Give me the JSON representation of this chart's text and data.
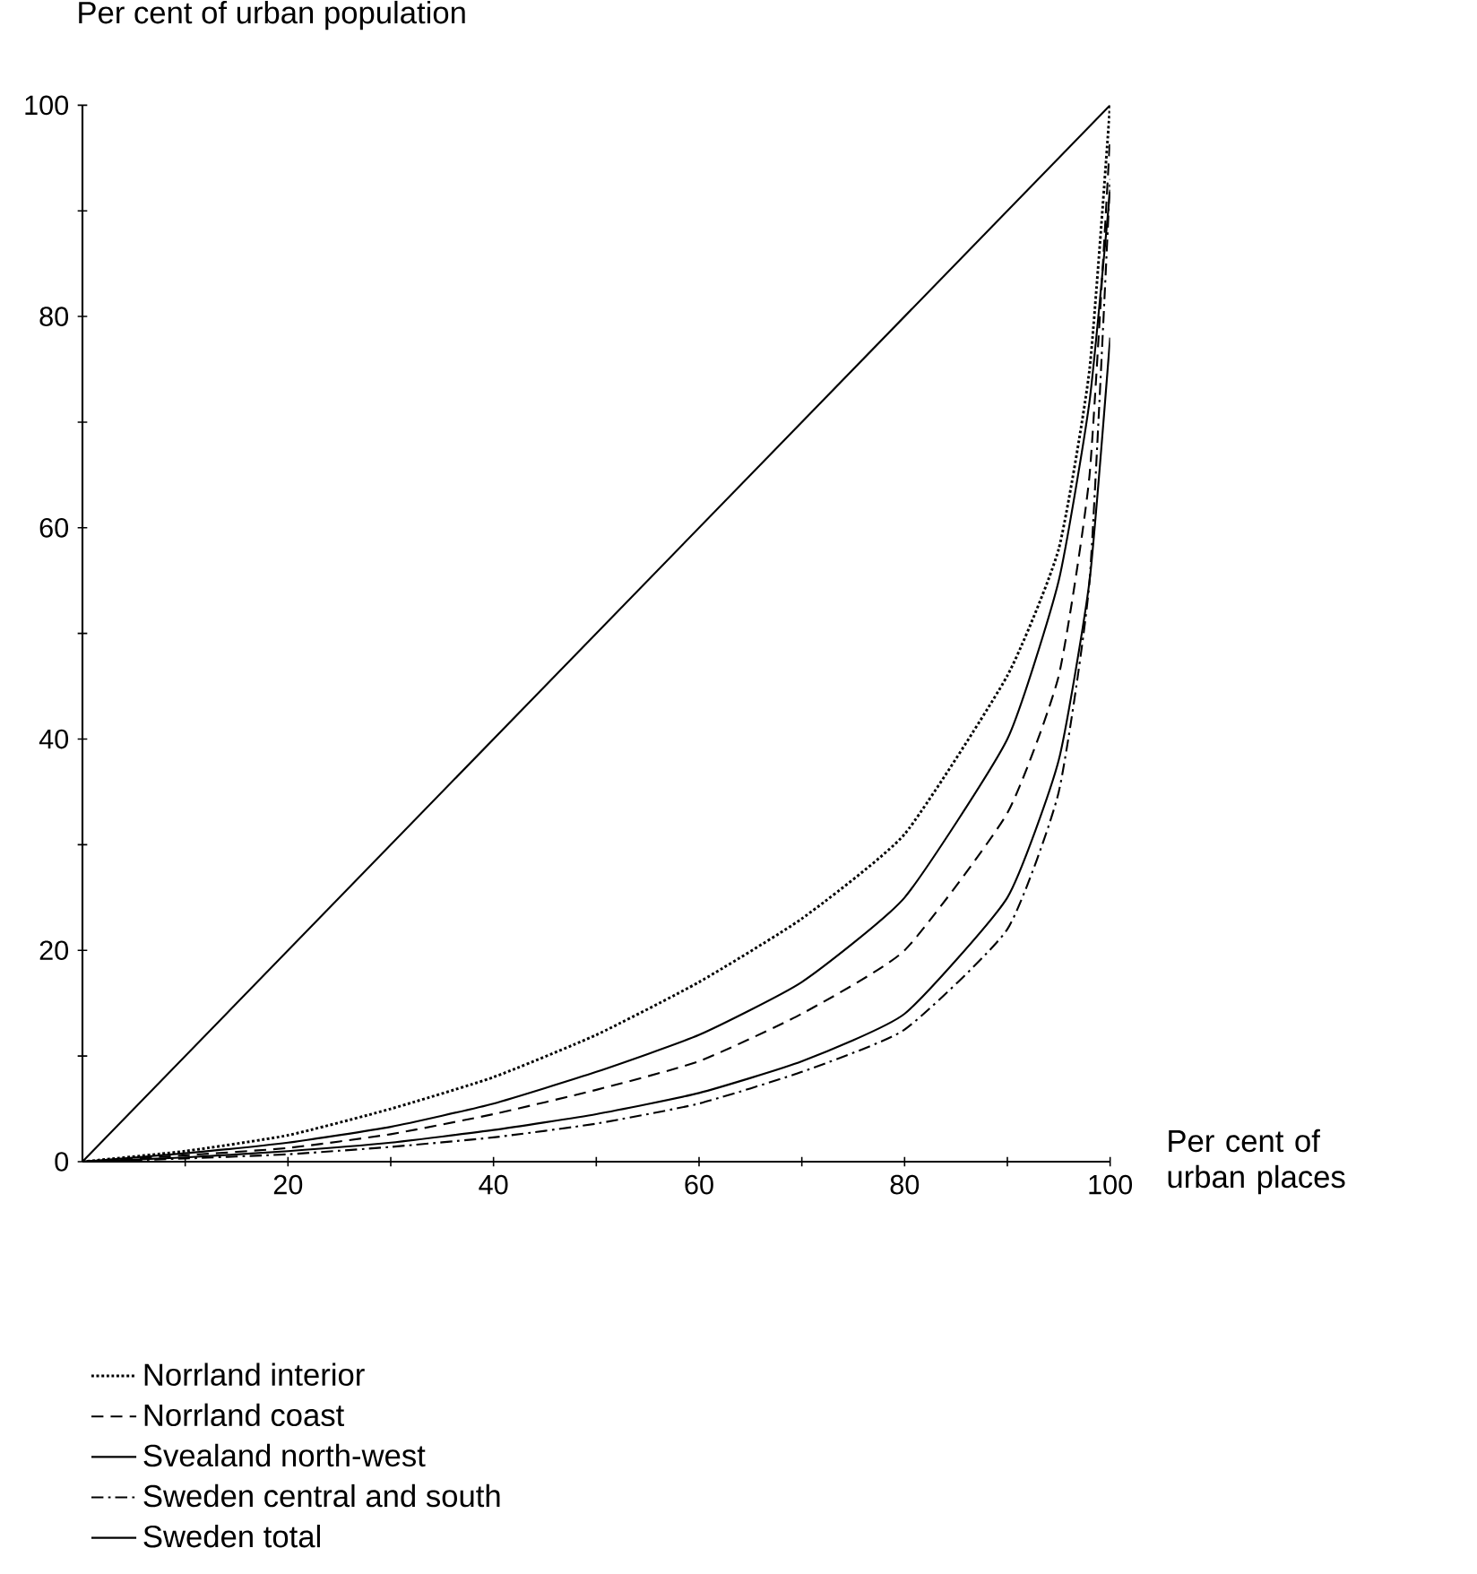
{
  "chart_data": {
    "type": "line",
    "ylabel": "Per cent of urban population",
    "xlabel": "Per cent of urban places",
    "x": [
      0,
      10,
      20,
      30,
      40,
      50,
      60,
      70,
      80,
      90,
      95,
      98,
      100
    ],
    "xlim": [
      0,
      100
    ],
    "ylim": [
      0,
      100
    ],
    "xticks": [
      {
        "value": 10,
        "label": null
      },
      20,
      {
        "value": 30,
        "label": null
      },
      40,
      {
        "value": 50,
        "label": null
      },
      60,
      {
        "value": 70,
        "label": null
      },
      80,
      {
        "value": 90,
        "label": null
      },
      100
    ],
    "yticks": [
      0,
      {
        "value": 10,
        "label": null
      },
      20,
      {
        "value": 30,
        "label": null
      },
      40,
      {
        "value": 50,
        "label": null
      },
      60,
      {
        "value": 70,
        "label": null
      },
      80,
      {
        "value": 90,
        "label": null
      },
      100
    ],
    "legend": "bottom",
    "series": [
      {
        "type": "line",
        "x": [
          0,
          100
        ],
        "values": [
          0,
          100
        ],
        "color": "#000000",
        "line_style": "solid"
      },
      {
        "name": "Norrland interior",
        "color": "#000000",
        "line_style": "dotted",
        "values": [
          0,
          1,
          2.5,
          5,
          8,
          12,
          17,
          23,
          31,
          46,
          58,
          75,
          100
        ]
      },
      {
        "name": "Norrland coast",
        "color": "#000000",
        "line_style": "dashed",
        "values": [
          0,
          0.6,
          1.3,
          2.6,
          4.5,
          6.8,
          9.5,
          14,
          20,
          33,
          46,
          65,
          97
        ]
      },
      {
        "name": "Svealand north-west",
        "color": "#000000",
        "line_style": "solid",
        "values": [
          0,
          0.8,
          1.8,
          3.3,
          5.5,
          8.5,
          12,
          17,
          25,
          40,
          55,
          72,
          92
        ]
      },
      {
        "name": "Sweden central and south",
        "color": "#000000",
        "line_style": "dashdot",
        "values": [
          0,
          0.3,
          0.7,
          1.4,
          2.3,
          3.6,
          5.5,
          8.5,
          12.5,
          22,
          35,
          55,
          93
        ]
      },
      {
        "name": "Sweden total",
        "color": "#000000",
        "line_style": "solid",
        "values": [
          0,
          0.4,
          1,
          1.8,
          3,
          4.5,
          6.5,
          9.5,
          14,
          25,
          38,
          55,
          78
        ]
      }
    ]
  }
}
